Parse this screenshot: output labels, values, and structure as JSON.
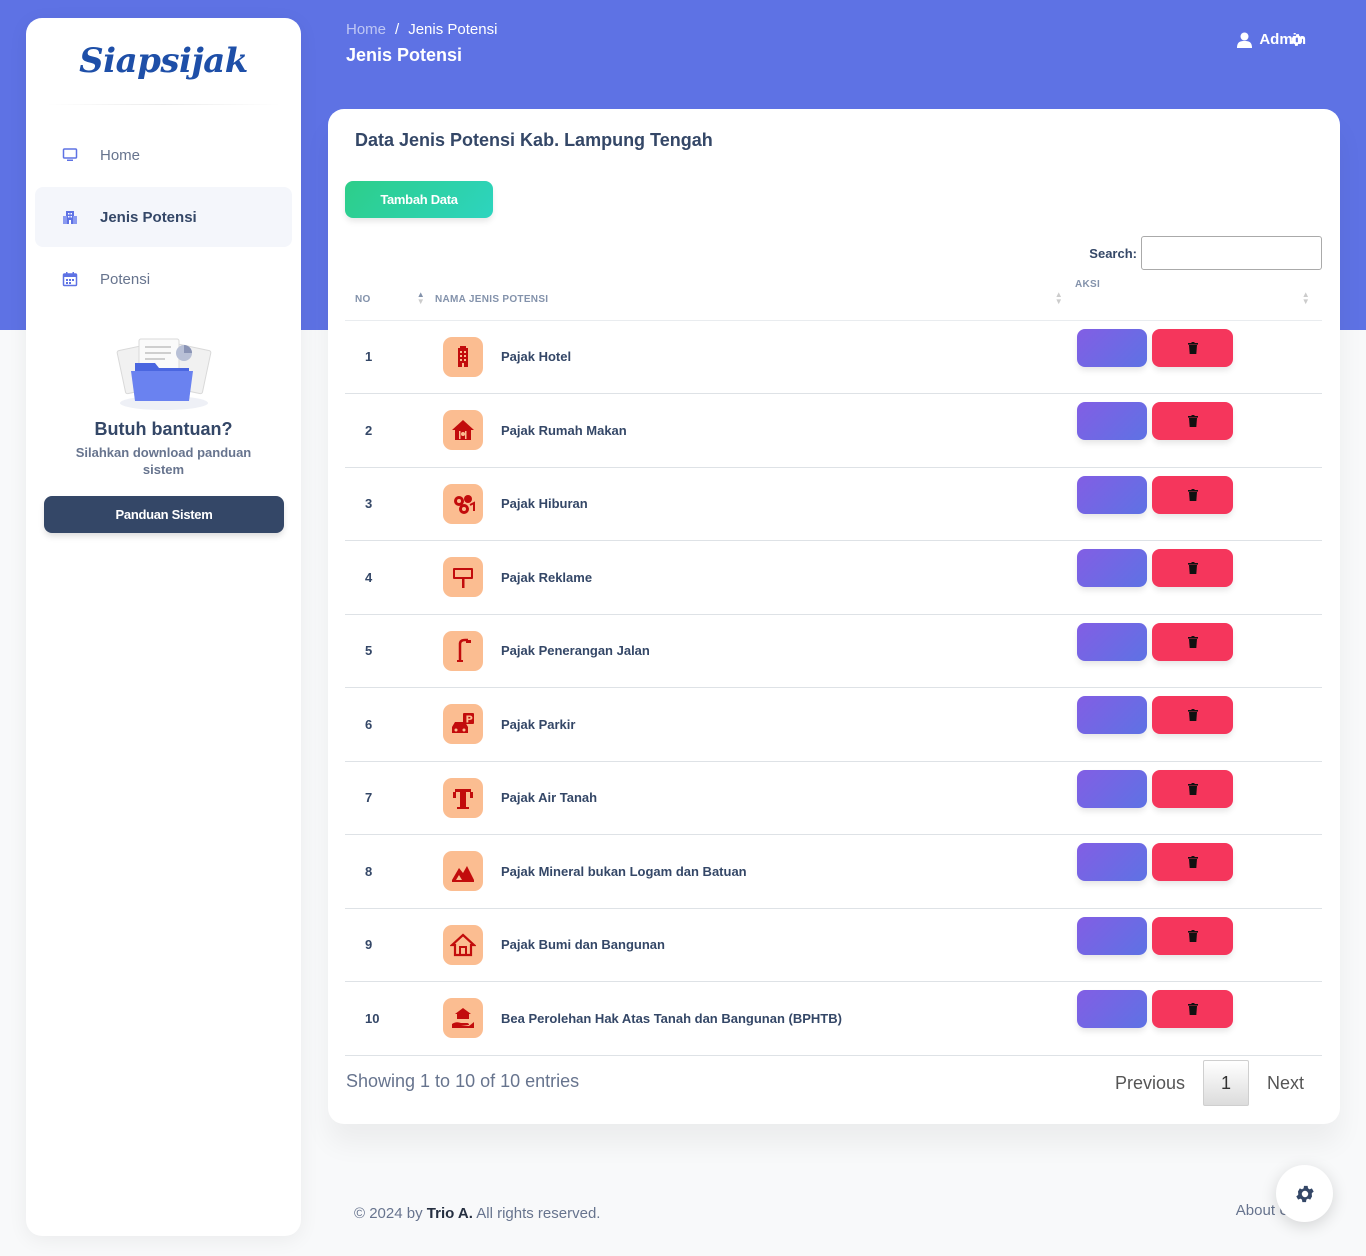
{
  "brand": {
    "name": "Siapsijak"
  },
  "sidebar": {
    "items": [
      {
        "label": "Home",
        "icon": "monitor-icon"
      },
      {
        "label": "Jenis Potensi",
        "icon": "building-icon"
      },
      {
        "label": "Potensi",
        "icon": "calendar-icon"
      }
    ],
    "help": {
      "title": "Butuh bantuan?",
      "subtitle": "Silahkan download panduan sistem",
      "button": "Panduan Sistem"
    }
  },
  "header": {
    "breadcrumb": {
      "home": "Home",
      "sep": "/",
      "current": "Jenis Potensi"
    },
    "title": "Jenis Potensi",
    "user": "Admin"
  },
  "card": {
    "title": "Data Jenis Potensi Kab. Lampung Tengah",
    "add_button": "Tambah Data",
    "search_label": "Search:",
    "search_value": "",
    "columns": [
      "No",
      "Nama Jenis Potensi",
      "Aksi"
    ],
    "rows": [
      {
        "no": "1",
        "name": "Pajak Hotel",
        "icon": "hotel-icon"
      },
      {
        "no": "2",
        "name": "Pajak Rumah Makan",
        "icon": "restaurant-icon"
      },
      {
        "no": "3",
        "name": "Pajak Hiburan",
        "icon": "entertainment-icon"
      },
      {
        "no": "4",
        "name": "Pajak Reklame",
        "icon": "billboard-icon"
      },
      {
        "no": "5",
        "name": "Pajak Penerangan Jalan",
        "icon": "street-lamp-icon"
      },
      {
        "no": "6",
        "name": "Pajak Parkir",
        "icon": "parking-icon"
      },
      {
        "no": "7",
        "name": "Pajak Air Tanah",
        "icon": "water-tap-icon"
      },
      {
        "no": "8",
        "name": "Pajak Mineral bukan Logam dan Batuan",
        "icon": "mineral-icon"
      },
      {
        "no": "9",
        "name": "Pajak Bumi dan Bangunan",
        "icon": "house-icon"
      },
      {
        "no": "10",
        "name": "Bea Perolehan Hak Atas Tanah dan Bangunan (BPHTB)",
        "icon": "property-transfer-icon"
      }
    ],
    "info": "Showing 1 to 10 of 10 entries",
    "pager": {
      "prev": "Previous",
      "current": "1",
      "next": "Next"
    }
  },
  "footer": {
    "copyright": "© 2024 by",
    "author": "Trio A.",
    "rights": "All rights reserved.",
    "about": "About U"
  },
  "colors": {
    "primary": "#5e72e4",
    "success": "#2dce89",
    "danger": "#f5365c",
    "dark": "#344767",
    "icon_bg": "#fbbd91",
    "icon_fg": "#c20c0c"
  }
}
